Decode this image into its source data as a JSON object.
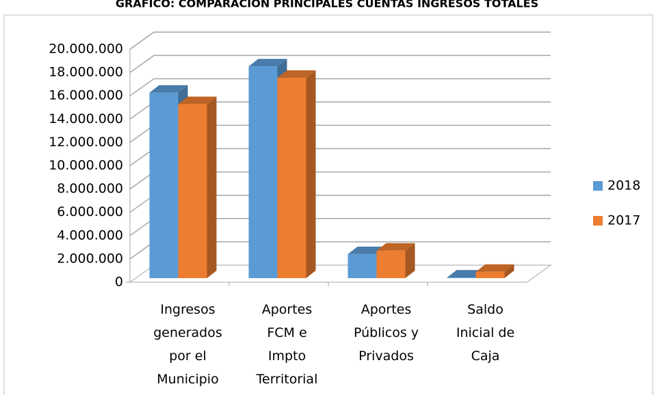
{
  "chart_data": {
    "type": "bar3d",
    "title": "GRÁFICO: COMPARACIÓN PRINCIPALES CUENTAS INGRESOS TOTALES",
    "categories": [
      "Ingresos generados por el Municipio",
      "Aportes FCM e Impto Territorial",
      "Aportes Públicos y Privados",
      "Saldo Inicial de Caja"
    ],
    "series": [
      {
        "name": "2018",
        "color": "#5b9bd5",
        "values": [
          16200000,
          18500000,
          2100000,
          50000
        ]
      },
      {
        "name": "2017",
        "color": "#ed7d31",
        "values": [
          15200000,
          17500000,
          2400000,
          550000
        ]
      }
    ],
    "ylim": [
      0,
      20000000
    ],
    "yticks": [
      0,
      {
        "value": 2000000,
        "label": "2.000.000"
      },
      {
        "value": 4000000,
        "label": "4.000.000"
      },
      {
        "value": 6000000,
        "label": "6.000.000"
      },
      {
        "value": 8000000,
        "label": "8.000.000"
      },
      {
        "value": 10000000,
        "label": "10.000.000"
      },
      {
        "value": 12000000,
        "label": "12.000.000"
      },
      {
        "value": 14000000,
        "label": "14.000.000"
      },
      {
        "value": 16000000,
        "label": "16.000.000"
      },
      {
        "value": 18000000,
        "label": "18.000.000"
      },
      {
        "value": 20000000,
        "label": "20.000.000"
      }
    ],
    "grid": true,
    "legend": "right"
  }
}
